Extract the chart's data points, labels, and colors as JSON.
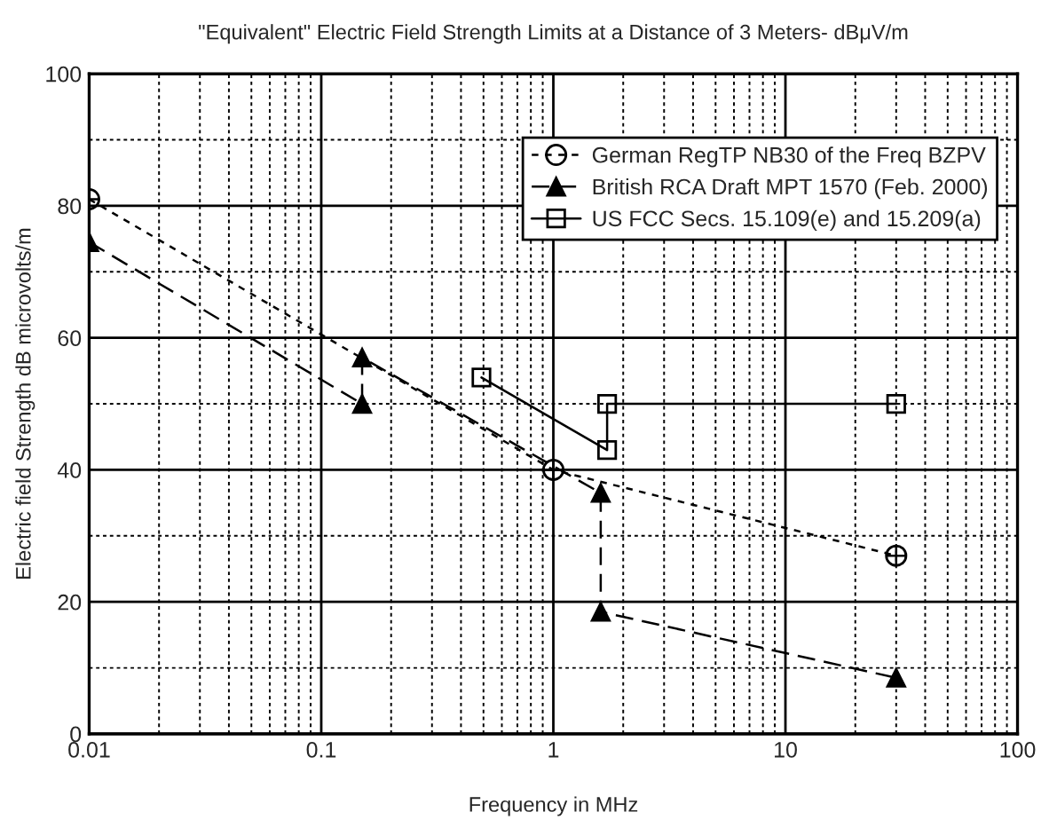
{
  "chart_data": {
    "type": "line",
    "title": "\"Equivalent\" Electric Field Strength Limits at a Distance of 3 Meters- dBμV/m",
    "xlabel": "Frequency in MHz",
    "ylabel": "Electric field Strength dB microvolts/m",
    "log": "x",
    "grid": true,
    "legend": "top right",
    "xlim": [
      0.01,
      100
    ],
    "ylim": [
      0,
      100
    ],
    "xticks": [
      {
        "value": 0.01,
        "label": "0.01"
      },
      {
        "value": 0.02,
        "label": null
      },
      {
        "value": 0.03,
        "label": null
      },
      {
        "value": 0.04,
        "label": null
      },
      {
        "value": 0.05,
        "label": null
      },
      {
        "value": 0.06,
        "label": null
      },
      {
        "value": 0.07,
        "label": null
      },
      {
        "value": 0.08,
        "label": null
      },
      {
        "value": 0.09,
        "label": null
      },
      {
        "value": 0.1,
        "label": "0.1"
      },
      {
        "value": 0.2,
        "label": null
      },
      {
        "value": 0.3,
        "label": null
      },
      {
        "value": 0.4,
        "label": null
      },
      {
        "value": 0.5,
        "label": null
      },
      {
        "value": 0.6,
        "label": null
      },
      {
        "value": 0.7,
        "label": null
      },
      {
        "value": 0.8,
        "label": null
      },
      {
        "value": 0.9,
        "label": null
      },
      {
        "value": 1,
        "label": "1"
      },
      {
        "value": 2,
        "label": null
      },
      {
        "value": 3,
        "label": null
      },
      {
        "value": 4,
        "label": null
      },
      {
        "value": 5,
        "label": null
      },
      {
        "value": 6,
        "label": null
      },
      {
        "value": 7,
        "label": null
      },
      {
        "value": 8,
        "label": null
      },
      {
        "value": 9,
        "label": null
      },
      {
        "value": 10,
        "label": "10"
      },
      {
        "value": 20,
        "label": null
      },
      {
        "value": 30,
        "label": null
      },
      {
        "value": 40,
        "label": null
      },
      {
        "value": 50,
        "label": null
      },
      {
        "value": 60,
        "label": null
      },
      {
        "value": 70,
        "label": null
      },
      {
        "value": 80,
        "label": null
      },
      {
        "value": 90,
        "label": null
      },
      {
        "value": 100,
        "label": "100"
      }
    ],
    "yticks": [
      0,
      {
        "value": 10,
        "label": null
      },
      20,
      {
        "value": 30,
        "label": null
      },
      40,
      {
        "value": 50,
        "label": null
      },
      60,
      {
        "value": 70,
        "label": null
      },
      80,
      {
        "value": 90,
        "label": null
      },
      100
    ],
    "series": [
      {
        "name": "German RegTP NB30 of the Freq BZPV",
        "color": "#000000",
        "marker": "circle",
        "line_style": "dotted",
        "x": [
          0.01,
          1,
          30
        ],
        "values": [
          81,
          40,
          27
        ]
      },
      {
        "name": "British RCA Draft MPT 1570 (Feb. 2000)",
        "color": "#000000",
        "marker": "triangle",
        "line_style": "dashed",
        "x": [
          0.01,
          0.15,
          0.15,
          1.6,
          1.6,
          30
        ],
        "values": [
          74.5,
          50,
          57,
          36.5,
          18.5,
          8.5
        ]
      },
      {
        "name": "US FCC Secs. 15.109(e) and 15.209(a)",
        "color": "#000000",
        "marker": "square",
        "line_style": "solid",
        "x": [
          0.49,
          1.705,
          1.705,
          30
        ],
        "values": [
          54,
          43,
          50,
          50
        ]
      }
    ]
  }
}
